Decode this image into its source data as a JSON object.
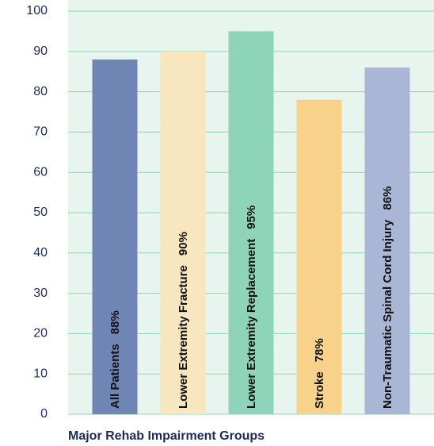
{
  "chart_data": {
    "type": "bar",
    "xlabel": "Major Rehab Impairment Groups",
    "categories": [
      "All Patients",
      "Lower Extremity Fracture",
      "Lower Extremity Replacement",
      "Stroke",
      "Non-Traumatic Spinal Cord Injury"
    ],
    "values": [
      88,
      90,
      95,
      78,
      86
    ],
    "value_labels": [
      "88%",
      "90%",
      "95%",
      "78%",
      "86%"
    ],
    "colors": [
      "#6f86b5",
      "#f8e6bf",
      "#8ed4bb",
      "#f8d28a",
      "#a9b6d6"
    ],
    "ylim": [
      0,
      100
    ],
    "yticks": [
      0,
      10,
      20,
      30,
      40,
      50,
      60,
      70,
      80,
      90,
      100
    ],
    "grid": true
  }
}
